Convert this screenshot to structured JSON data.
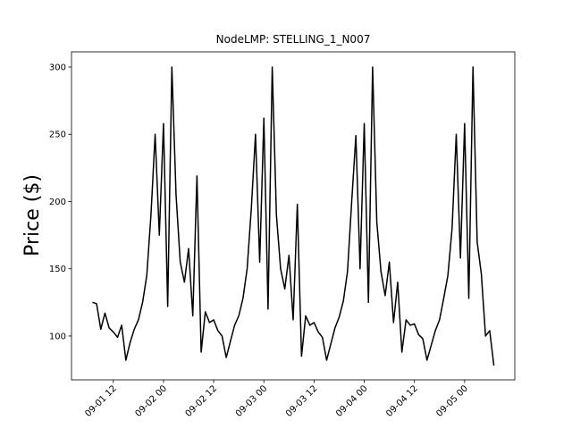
{
  "chart_data": {
    "type": "line",
    "title": "NodeLMP: STELLING_1_N007",
    "y_label": "Price ($)",
    "x": [
      "09-01 07",
      "09-01 08",
      "09-01 09",
      "09-01 10",
      "09-01 11",
      "09-01 12",
      "09-01 13",
      "09-01 14",
      "09-01 15",
      "09-01 16",
      "09-01 17",
      "09-01 18",
      "09-01 19",
      "09-01 20",
      "09-01 21",
      "09-01 22",
      "09-01 23",
      "09-02 00",
      "09-02 01",
      "09-02 02",
      "09-02 03",
      "09-02 04",
      "09-02 05",
      "09-02 06",
      "09-02 07",
      "09-02 08",
      "09-02 09",
      "09-02 10",
      "09-02 11",
      "09-02 12",
      "09-02 13",
      "09-02 14",
      "09-02 15",
      "09-02 16",
      "09-02 17",
      "09-02 18",
      "09-02 19",
      "09-02 20",
      "09-02 21",
      "09-02 22",
      "09-02 23",
      "09-03 00",
      "09-03 01",
      "09-03 02",
      "09-03 03",
      "09-03 04",
      "09-03 05",
      "09-03 06",
      "09-03 07",
      "09-03 08",
      "09-03 09",
      "09-03 10",
      "09-03 11",
      "09-03 12",
      "09-03 13",
      "09-03 14",
      "09-03 15",
      "09-03 16",
      "09-03 17",
      "09-03 18",
      "09-03 19",
      "09-03 20",
      "09-03 21",
      "09-03 22",
      "09-03 23",
      "09-04 00",
      "09-04 01",
      "09-04 02",
      "09-04 03",
      "09-04 04",
      "09-04 05",
      "09-04 06",
      "09-04 07",
      "09-04 08",
      "09-04 09",
      "09-04 10",
      "09-04 11",
      "09-04 12",
      "09-04 13",
      "09-04 14",
      "09-04 15",
      "09-04 16",
      "09-04 17",
      "09-04 18",
      "09-04 19",
      "09-04 20",
      "09-04 21",
      "09-04 22",
      "09-04 23",
      "09-05 00",
      "09-05 01",
      "09-05 02",
      "09-05 03",
      "09-05 04",
      "09-05 05",
      "09-05 06",
      "09-05 07"
    ],
    "series": [
      {
        "name": "STELLING_1_N007",
        "color": "#000000",
        "values": [
          125,
          124,
          105,
          117,
          106,
          103,
          99,
          108,
          82,
          95,
          105,
          112,
          125,
          145,
          190,
          250,
          175,
          258,
          122,
          300,
          205,
          155,
          140,
          165,
          115,
          219,
          88,
          118,
          110,
          112,
          104,
          100,
          84,
          96,
          108,
          115,
          128,
          150,
          195,
          250,
          155,
          262,
          120,
          300,
          190,
          150,
          135,
          160,
          112,
          198,
          85,
          115,
          108,
          110,
          103,
          99,
          82,
          94,
          106,
          114,
          126,
          148,
          200,
          249,
          150,
          258,
          125,
          300,
          185,
          148,
          130,
          155,
          110,
          140,
          88,
          112,
          108,
          109,
          101,
          98,
          82,
          93,
          104,
          112,
          128,
          145,
          180,
          250,
          158,
          258,
          128,
          300,
          170,
          146,
          100,
          104,
          78
        ]
      }
    ],
    "xlim": [
      "09-01 02",
      "09-05 12"
    ],
    "xticks": [
      "09-01 12",
      "09-02 00",
      "09-02 12",
      "09-03 00",
      "09-03 12",
      "09-04 00",
      "09-04 12",
      "09-05 00"
    ],
    "ylim": [
      67.4,
      311.3
    ],
    "yticks": [
      100,
      150,
      200,
      250,
      300
    ]
  }
}
